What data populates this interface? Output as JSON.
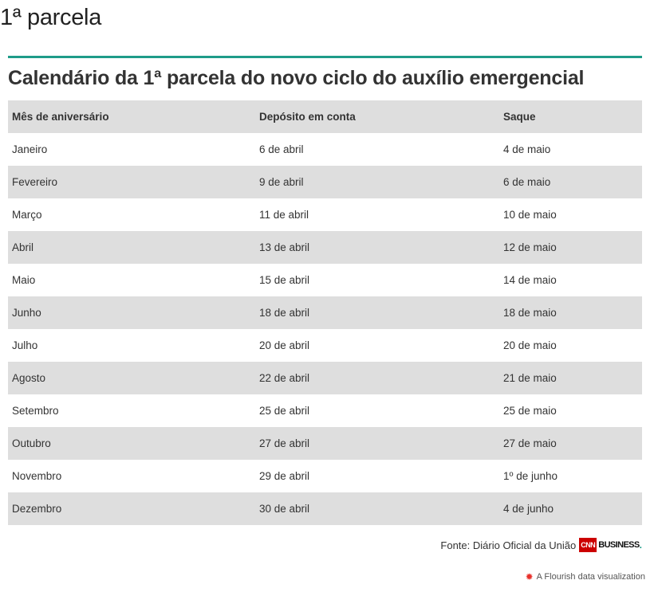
{
  "section_heading": "1ª parcela",
  "title": "Calendário da 1ª parcela do novo ciclo do auxílio emergencial",
  "table": {
    "headers": [
      "Mês de aniversário",
      "Depósito em conta",
      "Saque"
    ],
    "rows": [
      [
        "Janeiro",
        "6 de abril",
        "4 de maio"
      ],
      [
        "Fevereiro",
        "9 de abril",
        "6 de maio"
      ],
      [
        "Março",
        "11 de abril",
        "10 de maio"
      ],
      [
        "Abril",
        "13 de abril",
        "12 de maio"
      ],
      [
        "Maio",
        "15 de abril",
        "14 de maio"
      ],
      [
        "Junho",
        "18 de abril",
        "18 de maio"
      ],
      [
        "Julho",
        "20 de abril",
        "20 de maio"
      ],
      [
        "Agosto",
        "22 de abril",
        "21 de maio"
      ],
      [
        "Setembro",
        "25 de abril",
        "25 de maio"
      ],
      [
        "Outubro",
        "27 de abril",
        "27 de maio"
      ],
      [
        "Novembro",
        "29 de abril",
        "1º de junho"
      ],
      [
        "Dezembro",
        "30 de abril",
        "4 de junho"
      ]
    ]
  },
  "source": "Fonte: Diário Oficial da União",
  "logo": {
    "cnn": "CNN",
    "business": "BUSINESS",
    "dot": "."
  },
  "credit": "A Flourish data visualization",
  "credit_icon": "flourish-icon",
  "colors": {
    "accent_rule": "#1e9c89",
    "row_stripe": "#dedede",
    "cnn_red": "#cc0000",
    "flourish_red": "#e8322c"
  }
}
